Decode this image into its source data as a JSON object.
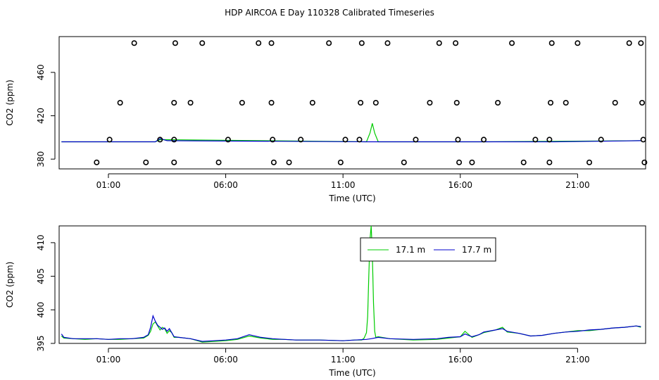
{
  "title": "HDP AIRCOA E  Day 110328  Calibrated Timeseries",
  "colors": {
    "series_1": "#00cc00",
    "series_2": "#0000cc",
    "points": "#000000"
  },
  "chart_data": [
    {
      "type": "scatter",
      "xlabel": "Time (UTC)",
      "ylabel": "CO2 (ppm)",
      "xlim": [
        -1.1,
        23.9
      ],
      "ylim": [
        371,
        493
      ],
      "xticks": [
        1,
        6,
        11,
        16,
        21
      ],
      "xtick_labels": [
        "01:00",
        "06:00",
        "11:00",
        "16:00",
        "21:00"
      ],
      "yticks": [
        380,
        420,
        460
      ],
      "series": [
        {
          "role": "calibration points",
          "points": [
            [
              1.05,
              398
            ],
            [
              3.2,
              398
            ],
            [
              3.8,
              398
            ],
            [
              6.1,
              398
            ],
            [
              8.0,
              398
            ],
            [
              9.2,
              398
            ],
            [
              11.1,
              398
            ],
            [
              11.7,
              398
            ],
            [
              14.1,
              398
            ],
            [
              15.9,
              398
            ],
            [
              17.0,
              398
            ],
            [
              19.2,
              398
            ],
            [
              19.8,
              398
            ],
            [
              22.0,
              398
            ],
            [
              23.8,
              398
            ],
            [
              1.5,
              432
            ],
            [
              3.8,
              432
            ],
            [
              4.5,
              432
            ],
            [
              6.7,
              432
            ],
            [
              7.95,
              432
            ],
            [
              9.7,
              432
            ],
            [
              11.75,
              432
            ],
            [
              12.4,
              432
            ],
            [
              14.7,
              432
            ],
            [
              15.85,
              432
            ],
            [
              17.6,
              432
            ],
            [
              19.85,
              432
            ],
            [
              20.5,
              432
            ],
            [
              22.6,
              432
            ],
            [
              23.75,
              432
            ],
            [
              2.1,
              487
            ],
            [
              3.85,
              487
            ],
            [
              5.0,
              487
            ],
            [
              7.4,
              487
            ],
            [
              7.95,
              487
            ],
            [
              10.4,
              487
            ],
            [
              11.8,
              487
            ],
            [
              12.9,
              487
            ],
            [
              15.1,
              487
            ],
            [
              15.8,
              487
            ],
            [
              18.2,
              487
            ],
            [
              19.9,
              487
            ],
            [
              21.0,
              487
            ],
            [
              23.2,
              487
            ],
            [
              23.7,
              487
            ],
            [
              0.5,
              377
            ],
            [
              2.6,
              377
            ],
            [
              3.8,
              377
            ],
            [
              5.7,
              377
            ],
            [
              8.05,
              377
            ],
            [
              8.7,
              377
            ],
            [
              10.9,
              377
            ],
            [
              13.6,
              377
            ],
            [
              15.95,
              377
            ],
            [
              16.5,
              377
            ],
            [
              18.7,
              377
            ],
            [
              19.8,
              377
            ],
            [
              21.5,
              377
            ],
            [
              23.85,
              377
            ]
          ]
        },
        {
          "name": "17.1 m",
          "color": "#00cc00",
          "points": [
            [
              -1,
              396
            ],
            [
              3,
              396
            ],
            [
              3.2,
              398
            ],
            [
              12,
              396
            ],
            [
              12.15,
              404
            ],
            [
              12.25,
              413
            ],
            [
              12.35,
              404
            ],
            [
              12.5,
              396
            ],
            [
              17,
              396
            ],
            [
              23.7,
              397
            ]
          ]
        },
        {
          "name": "17.7 m",
          "color": "#0000cc",
          "points": [
            [
              -1,
              396
            ],
            [
              3,
              396
            ],
            [
              3.2,
              399
            ],
            [
              3.5,
              397
            ],
            [
              12,
              396
            ],
            [
              17,
              396
            ],
            [
              20,
              396
            ],
            [
              23.7,
              397
            ]
          ]
        }
      ]
    },
    {
      "type": "line",
      "xlabel": "Time (UTC)",
      "ylabel": "CO2 (ppm)",
      "xlim": [
        -1.1,
        23.9
      ],
      "ylim": [
        395,
        412.5
      ],
      "xticks": [
        1,
        6,
        11,
        16,
        21
      ],
      "xtick_labels": [
        "01:00",
        "06:00",
        "11:00",
        "16:00",
        "21:00"
      ],
      "yticks": [
        395,
        400,
        405,
        410
      ],
      "legend": {
        "position": "top-center",
        "entries": [
          "17.1 m",
          "17.7 m"
        ]
      },
      "series": [
        {
          "name": "17.1 m",
          "color": "#00cc00",
          "x": [
            -1.0,
            -0.9,
            -0.5,
            0.0,
            0.5,
            1.0,
            1.5,
            2.0,
            2.5,
            2.7,
            2.8,
            2.9,
            3.0,
            3.1,
            3.2,
            3.3,
            3.4,
            3.5,
            3.6,
            3.7,
            3.8,
            4.0,
            4.5,
            5.0,
            5.5,
            6.0,
            6.5,
            7.0,
            7.5,
            8.0,
            8.5,
            9.0,
            10.0,
            11.0,
            11.5,
            11.8,
            11.9,
            12.0,
            12.05,
            12.1,
            12.15,
            12.2,
            12.25,
            12.3,
            12.35,
            12.4,
            12.5,
            13.0,
            14.0,
            15.0,
            15.5,
            16.0,
            16.2,
            16.5,
            16.8,
            17.0,
            17.5,
            17.8,
            18.0,
            18.5,
            19.0,
            19.5,
            20.0,
            20.5,
            21.0,
            21.5,
            22.0,
            22.5,
            23.0,
            23.5,
            23.7
          ],
          "y": [
            396.1,
            395.8,
            395.7,
            395.6,
            395.7,
            395.6,
            395.6,
            395.7,
            395.8,
            396.2,
            396.8,
            397.9,
            398.2,
            397.6,
            397.0,
            397.4,
            397.2,
            396.5,
            396.9,
            396.6,
            395.9,
            395.9,
            395.7,
            395.2,
            395.3,
            395.4,
            395.6,
            396.1,
            395.8,
            395.6,
            395.6,
            395.5,
            395.5,
            395.4,
            395.5,
            395.5,
            395.8,
            396.6,
            399.0,
            405.0,
            410.5,
            412.8,
            408.5,
            401.0,
            396.8,
            395.9,
            396.0,
            395.7,
            395.5,
            395.6,
            395.8,
            396.0,
            396.8,
            395.9,
            396.3,
            396.6,
            397.0,
            397.4,
            396.7,
            396.5,
            396.1,
            396.2,
            396.5,
            396.7,
            396.9,
            396.9,
            397.1,
            397.3,
            397.4,
            397.6,
            397.4
          ]
        },
        {
          "name": "17.7 m",
          "color": "#0000cc",
          "x": [
            -1.0,
            -0.9,
            -0.5,
            0.0,
            0.5,
            1.0,
            1.5,
            2.0,
            2.5,
            2.7,
            2.8,
            2.9,
            3.0,
            3.1,
            3.2,
            3.3,
            3.4,
            3.5,
            3.6,
            3.7,
            3.8,
            4.0,
            4.5,
            5.0,
            5.5,
            6.0,
            6.5,
            7.0,
            7.5,
            8.0,
            8.5,
            9.0,
            10.0,
            11.0,
            11.5,
            12.0,
            12.2,
            12.5,
            13.0,
            14.0,
            15.0,
            15.5,
            16.0,
            16.2,
            16.5,
            16.8,
            17.0,
            17.5,
            17.8,
            18.0,
            18.5,
            19.0,
            19.5,
            20.0,
            20.5,
            21.0,
            21.5,
            22.0,
            22.5,
            23.0,
            23.5,
            23.7
          ],
          "y": [
            396.4,
            395.9,
            395.7,
            395.7,
            395.7,
            395.6,
            395.7,
            395.7,
            395.9,
            396.3,
            397.4,
            399.1,
            398.3,
            397.7,
            397.4,
            397.1,
            397.3,
            396.8,
            397.2,
            396.6,
            396.0,
            395.9,
            395.7,
            395.3,
            395.4,
            395.5,
            395.7,
            396.3,
            395.9,
            395.7,
            395.6,
            395.5,
            395.5,
            395.4,
            395.5,
            395.6,
            395.7,
            395.9,
            395.7,
            395.6,
            395.7,
            395.9,
            396.0,
            396.4,
            396.0,
            396.3,
            396.7,
            397.0,
            397.2,
            396.8,
            396.5,
            396.1,
            396.2,
            396.5,
            396.7,
            396.8,
            397.0,
            397.1,
            397.3,
            397.4,
            397.6,
            397.5
          ]
        }
      ]
    }
  ]
}
